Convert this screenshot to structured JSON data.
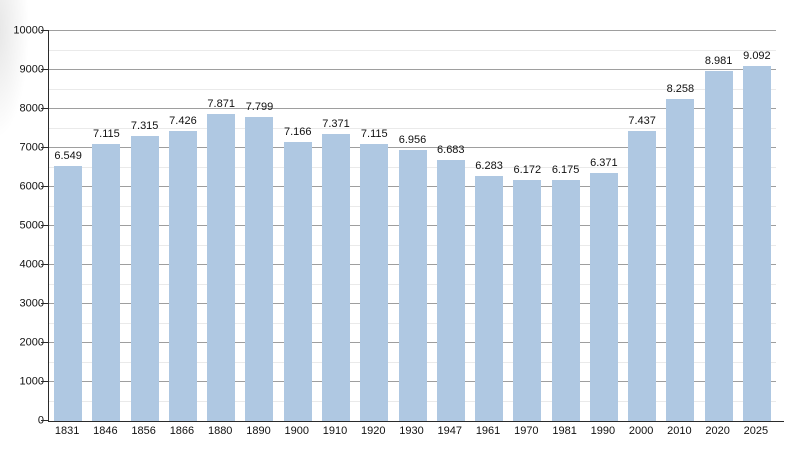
{
  "chart_data": {
    "type": "bar",
    "title": "",
    "xlabel": "",
    "ylabel": "",
    "categories": [
      "1831",
      "1846",
      "1856",
      "1866",
      "1880",
      "1890",
      "1900",
      "1910",
      "1920",
      "1930",
      "1947",
      "1961",
      "1970",
      "1981",
      "1990",
      "2000",
      "2010",
      "2020",
      "2025"
    ],
    "values": [
      6549,
      7115,
      7315,
      7426,
      7871,
      7799,
      7166,
      7371,
      7115,
      6956,
      6683,
      6283,
      6172,
      6175,
      6371,
      7437,
      8258,
      8981,
      9092
    ],
    "value_labels": [
      "6.549",
      "7.115",
      "7.315",
      "7.426",
      "7.871",
      "7.799",
      "7.166",
      "7.371",
      "7.115",
      "6.956",
      "6.683",
      "6.283",
      "6.172",
      "6.175",
      "6.371",
      "7.437",
      "8.258",
      "8.981",
      "9.092"
    ],
    "ylim": [
      0,
      10000
    ],
    "y_major_step": 1000,
    "y_minor_step": 500,
    "y_tick_labels": [
      "0",
      "1000",
      "2000",
      "3000",
      "4000",
      "5000",
      "6000",
      "7000",
      "8000",
      "9000",
      "10000"
    ],
    "grid": true,
    "legend": "none",
    "colors": {
      "bar": "#afc8e2",
      "major_grid": "#9e9e9e",
      "minor_grid": "#eaeaea",
      "axis": "#2b2b2b",
      "label": "#111111",
      "background": "#ffffff"
    }
  }
}
